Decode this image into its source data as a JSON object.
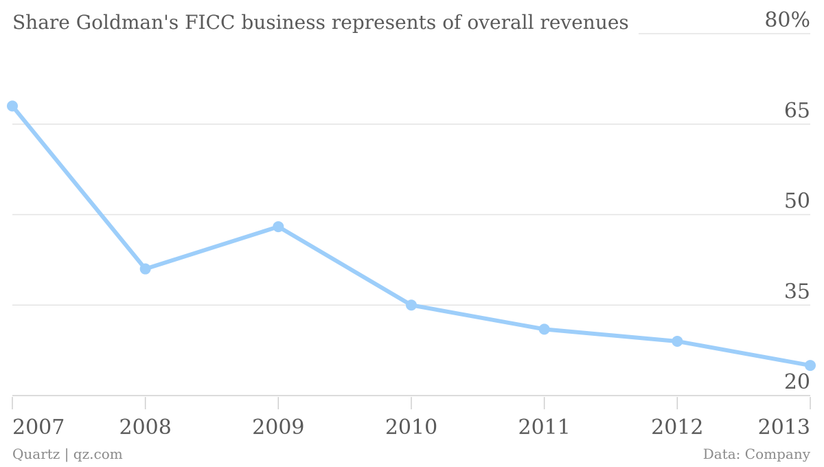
{
  "chart_data": {
    "type": "line",
    "title": "Share Goldman's FICC business represents of overall revenues",
    "x": [
      "2007",
      "2008",
      "2009",
      "2010",
      "2011",
      "2012",
      "2013"
    ],
    "series": [
      {
        "values": [
          68,
          41,
          48,
          35,
          31,
          29,
          25
        ]
      }
    ],
    "ylim": [
      20,
      80
    ],
    "y_ticks": [
      20,
      35,
      50,
      65,
      80
    ],
    "y_tick_labels": [
      "20",
      "35",
      "50",
      "65",
      "80%"
    ],
    "y_axis_side": "right",
    "grid": true,
    "line_color": "#9dcefa",
    "grid_color": "#e3e3e3"
  },
  "footer": {
    "source_left": "Quartz | qz.com",
    "source_right": "Data: Company"
  }
}
